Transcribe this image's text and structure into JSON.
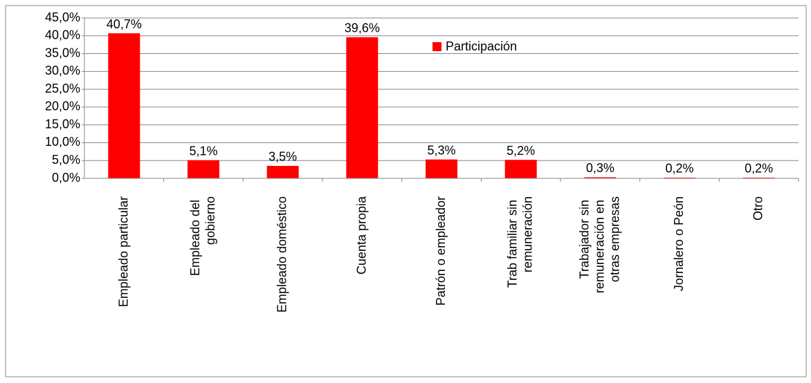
{
  "chart_data": {
    "type": "bar",
    "categories": [
      "Empleado particular",
      "Empleado del gobierno",
      "Empleado doméstico",
      "Cuenta propia",
      "Patrón o empleador",
      "Trab familiar sin remuneración",
      "Trabajador sin remuneración en otras empresas",
      "Jornalero o Peón",
      "Otro"
    ],
    "series": [
      {
        "name": "Participación",
        "color": "#ff0000",
        "values": [
          40.7,
          5.1,
          3.5,
          39.6,
          5.3,
          5.2,
          0.3,
          0.2,
          0.2
        ],
        "value_labels": [
          "40,7%",
          "5,1%",
          "3,5%",
          "39,6%",
          "5,3%",
          "5,2%",
          "0,3%",
          "0,2%",
          "0,2%"
        ]
      }
    ],
    "ylim": [
      0,
      45
    ],
    "yticks": [
      {
        "value": 0,
        "label": "0,0%"
      },
      {
        "value": 5,
        "label": "5,0%"
      },
      {
        "value": 10,
        "label": "10,0%"
      },
      {
        "value": 15,
        "label": "15,0%"
      },
      {
        "value": 20,
        "label": "20,0%"
      },
      {
        "value": 25,
        "label": "25,0%"
      },
      {
        "value": 30,
        "label": "30,0%"
      },
      {
        "value": 35,
        "label": "35,0%"
      },
      {
        "value": 40,
        "label": "40,0%"
      },
      {
        "value": 45,
        "label": "45,0%"
      }
    ],
    "grid": true,
    "legend": "top-right"
  }
}
